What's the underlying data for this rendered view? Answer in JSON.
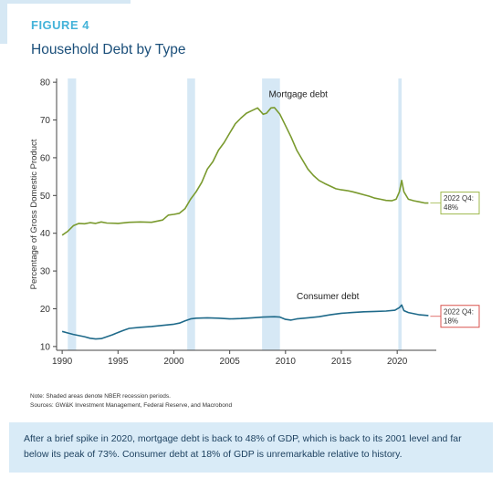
{
  "header": {
    "figure_label": "FIGURE 4",
    "title": "Household Debt by Type"
  },
  "chart_data": {
    "type": "line",
    "title": "Household Debt by Type",
    "xlabel": "",
    "ylabel": "Percentage of Gross Domestic Product",
    "xlim": [
      1989.5,
      2023.5
    ],
    "ylim": [
      9,
      81
    ],
    "x_ticks": [
      1990,
      1995,
      2000,
      2005,
      2010,
      2015,
      2020
    ],
    "y_ticks": [
      10,
      20,
      30,
      40,
      50,
      60,
      70,
      80
    ],
    "grid": false,
    "recessions": [
      [
        1990.5,
        1991.25
      ],
      [
        2001.2,
        2001.9
      ],
      [
        2007.9,
        2009.5
      ],
      [
        2020.1,
        2020.4
      ]
    ],
    "series": [
      {
        "name": "Mortgage debt",
        "color": "#7a9a2e",
        "points": [
          [
            1990,
            39.5
          ],
          [
            1990.5,
            40.5
          ],
          [
            1991,
            42
          ],
          [
            1991.5,
            42.6
          ],
          [
            1992,
            42.5
          ],
          [
            1992.5,
            42.8
          ],
          [
            1993,
            42.6
          ],
          [
            1993.5,
            43
          ],
          [
            1994,
            42.7
          ],
          [
            1995,
            42.6
          ],
          [
            1996,
            42.9
          ],
          [
            1997,
            43
          ],
          [
            1998,
            42.9
          ],
          [
            1999,
            43.5
          ],
          [
            1999.5,
            44.8
          ],
          [
            2000,
            45
          ],
          [
            2000.5,
            45.3
          ],
          [
            2001,
            46.5
          ],
          [
            2001.5,
            49
          ],
          [
            2002,
            51
          ],
          [
            2002.5,
            53.5
          ],
          [
            2003,
            57
          ],
          [
            2003.5,
            59
          ],
          [
            2004,
            62
          ],
          [
            2004.5,
            64
          ],
          [
            2005,
            66.5
          ],
          [
            2005.5,
            69
          ],
          [
            2006,
            70.5
          ],
          [
            2006.5,
            71.8
          ],
          [
            2007,
            72.5
          ],
          [
            2007.5,
            73.2
          ],
          [
            2008,
            71.5
          ],
          [
            2008.3,
            71.8
          ],
          [
            2008.7,
            73.2
          ],
          [
            2009,
            73.3
          ],
          [
            2009.5,
            71.5
          ],
          [
            2010,
            68.5
          ],
          [
            2010.5,
            65.5
          ],
          [
            2011,
            62
          ],
          [
            2011.5,
            59.5
          ],
          [
            2012,
            57
          ],
          [
            2012.5,
            55.3
          ],
          [
            2013,
            54
          ],
          [
            2013.5,
            53.2
          ],
          [
            2014,
            52.5
          ],
          [
            2014.5,
            51.8
          ],
          [
            2015,
            51.5
          ],
          [
            2015.5,
            51.3
          ],
          [
            2016,
            51
          ],
          [
            2016.5,
            50.6
          ],
          [
            2017,
            50.2
          ],
          [
            2017.5,
            49.8
          ],
          [
            2018,
            49.3
          ],
          [
            2018.5,
            49
          ],
          [
            2019,
            48.7
          ],
          [
            2019.5,
            48.6
          ],
          [
            2019.9,
            49
          ],
          [
            2020.2,
            51
          ],
          [
            2020.4,
            54
          ],
          [
            2020.6,
            51
          ],
          [
            2021,
            49
          ],
          [
            2021.5,
            48.6
          ],
          [
            2022,
            48.3
          ],
          [
            2022.5,
            48
          ],
          [
            2022.8,
            48
          ]
        ]
      },
      {
        "name": "Consumer debt",
        "color": "#1f6a8a",
        "points": [
          [
            1990,
            14
          ],
          [
            1990.5,
            13.6
          ],
          [
            1991,
            13.2
          ],
          [
            1991.5,
            12.9
          ],
          [
            1992,
            12.6
          ],
          [
            1992.5,
            12.2
          ],
          [
            1993,
            12
          ],
          [
            1993.5,
            12.1
          ],
          [
            1994,
            12.6
          ],
          [
            1994.5,
            13.1
          ],
          [
            1995,
            13.7
          ],
          [
            1995.5,
            14.3
          ],
          [
            1996,
            14.8
          ],
          [
            1997,
            15.1
          ],
          [
            1998,
            15.3
          ],
          [
            1999,
            15.6
          ],
          [
            2000,
            15.9
          ],
          [
            2000.5,
            16.2
          ],
          [
            2001,
            16.8
          ],
          [
            2001.5,
            17.3
          ],
          [
            2002,
            17.5
          ],
          [
            2003,
            17.6
          ],
          [
            2004,
            17.5
          ],
          [
            2005,
            17.3
          ],
          [
            2006,
            17.4
          ],
          [
            2007,
            17.6
          ],
          [
            2008,
            17.8
          ],
          [
            2009,
            17.9
          ],
          [
            2009.5,
            17.8
          ],
          [
            2010,
            17.2
          ],
          [
            2010.5,
            17
          ],
          [
            2011,
            17.3
          ],
          [
            2012,
            17.6
          ],
          [
            2013,
            17.9
          ],
          [
            2014,
            18.4
          ],
          [
            2015,
            18.8
          ],
          [
            2016,
            19
          ],
          [
            2017,
            19.2
          ],
          [
            2018,
            19.3
          ],
          [
            2019,
            19.4
          ],
          [
            2019.8,
            19.6
          ],
          [
            2020.2,
            20.3
          ],
          [
            2020.4,
            21
          ],
          [
            2020.6,
            19.5
          ],
          [
            2021,
            19
          ],
          [
            2021.5,
            18.7
          ],
          [
            2022,
            18.4
          ],
          [
            2022.8,
            18.2
          ]
        ]
      }
    ],
    "annotations": [
      {
        "text": "Mortgage debt",
        "x": 2008.5,
        "y": 76
      },
      {
        "text": "Consumer debt",
        "x": 2011,
        "y": 22.5
      }
    ],
    "end_labels": [
      {
        "series": 0,
        "lines": [
          "2022 Q4:",
          "48%"
        ],
        "value_y": 48,
        "border": "#9fb84d"
      },
      {
        "series": 1,
        "lines": [
          "2022 Q4:",
          "18%"
        ],
        "value_y": 18,
        "border": "#d9534f"
      }
    ]
  },
  "notes": {
    "line1": "Note: Shaded areas denote NBER recession periods.",
    "line2": "Sources: GW&K Investment Management, Federal Reserve, and Macrobond"
  },
  "caption": {
    "text": "After a brief spike in 2020, mortgage debt is back to 48% of GDP, which is back to its 2001 level and far below its peak of 73%. Consumer debt at 18% of GDP is unremarkable relative to history."
  }
}
